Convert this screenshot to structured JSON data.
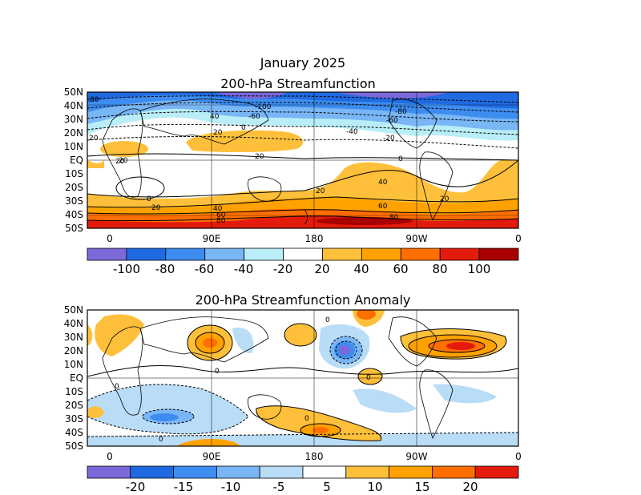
{
  "title": {
    "line1": "January 2025",
    "line2": "200-hPa Streamfunction"
  },
  "panel2_title": "200-hPa Streamfunction Anomaly",
  "lat_labels": [
    "50N",
    "40N",
    "30N",
    "20N",
    "10N",
    "EQ",
    "10S",
    "20S",
    "30S",
    "40S",
    "50S"
  ],
  "lon_labels": [
    "0",
    "90E",
    "180",
    "90W",
    "0"
  ],
  "colorbar1": {
    "colors": [
      "#7b68d9",
      "#1f6ae0",
      "#3d8df0",
      "#79b6f5",
      "#b9eef8",
      "#ffffff",
      "#fec03a",
      "#ffa200",
      "#ff6e00",
      "#e21b0c",
      "#a80000"
    ],
    "labels": [
      "-100",
      "-80",
      "-60",
      "-40",
      "-20",
      "20",
      "40",
      "60",
      "80",
      "100"
    ]
  },
  "colorbar2": {
    "colors": [
      "#7b68d9",
      "#1f6ae0",
      "#3d8df0",
      "#79b6f5",
      "#b9dcf7",
      "#ffffff",
      "#fec03a",
      "#ffa200",
      "#ff6e00",
      "#e21b0c"
    ],
    "labels": [
      "-20",
      "-15",
      "-10",
      "-5",
      "5",
      "10",
      "15",
      "20"
    ]
  },
  "contour_labels_panel1": [
    "80",
    "-100",
    "-60",
    "-80",
    "-60",
    "40",
    "20",
    "0",
    "-40",
    "-20",
    "20",
    "20",
    "20",
    "0",
    "20",
    "40",
    "20",
    "20",
    "60",
    "80",
    "40",
    "60",
    "80",
    "20",
    "0"
  ],
  "contour_labels_panel2": [
    "0",
    "0",
    "0",
    "0",
    "0",
    "0"
  ],
  "chart_data": {
    "type": "heatmap",
    "maps": [
      {
        "title": "200-hPa Streamfunction",
        "x": [
          "0",
          "90E",
          "180",
          "90W",
          "0"
        ],
        "y": [
          "50N",
          "40N",
          "30N",
          "20N",
          "10N",
          "EQ",
          "10S",
          "20S",
          "30S",
          "40S",
          "50S"
        ],
        "color_levels": [
          "-100",
          "-80",
          "-60",
          "-40",
          "-20",
          "20",
          "40",
          "60",
          "80",
          "100"
        ]
      },
      {
        "title": "200-hPa Streamfunction Anomaly",
        "x": [
          "0",
          "90E",
          "180",
          "90W",
          "0"
        ],
        "y": [
          "50N",
          "40N",
          "30N",
          "20N",
          "10N",
          "EQ",
          "10S",
          "20S",
          "30S",
          "40S",
          "50S"
        ],
        "color_levels": [
          "-20",
          "-15",
          "-10",
          "-5",
          "5",
          "10",
          "15",
          "20"
        ]
      }
    ]
  }
}
